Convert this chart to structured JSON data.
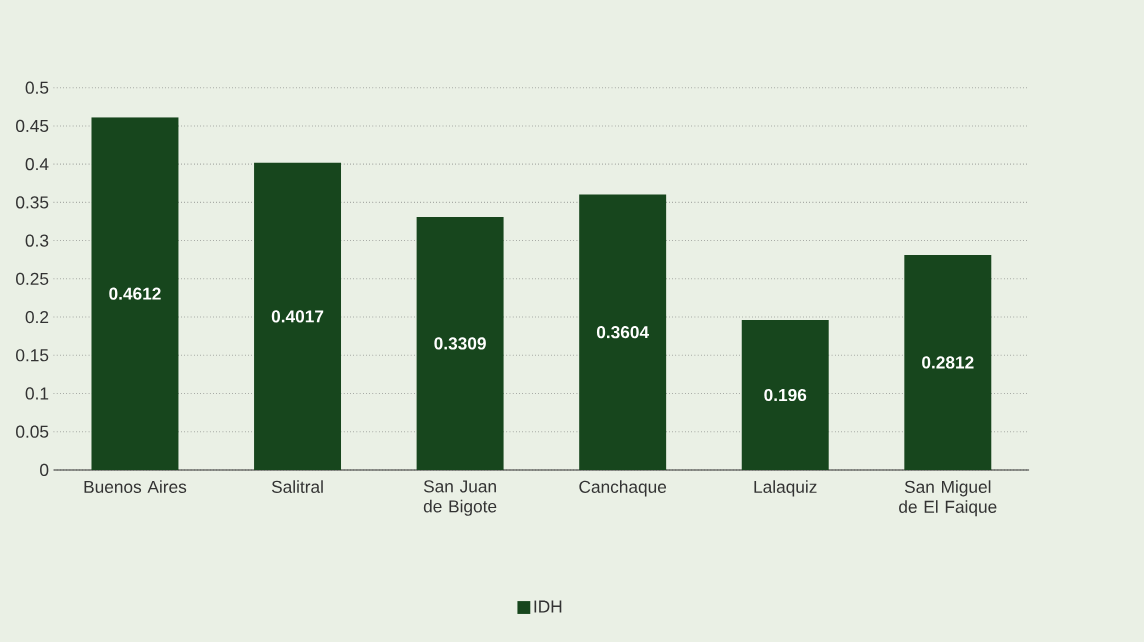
{
  "chart_data": {
    "type": "bar",
    "categories": [
      "Buenos Aires",
      "Salitral",
      "San Juan de Bigote",
      "Canchaque",
      "Lalaquiz",
      "San Miguel de El Faique"
    ],
    "series": [
      {
        "name": "IDH",
        "color": "#17461d",
        "values": [
          0.4612,
          0.4017,
          0.3309,
          0.3604,
          0.196,
          0.2812
        ]
      }
    ],
    "ylim": [
      0,
      0.5
    ],
    "yticks": [
      0,
      0.05,
      0.1,
      0.15,
      0.2,
      0.25,
      0.3,
      0.35,
      0.4,
      0.45,
      0.5
    ],
    "grid": "y",
    "legend": "bottom",
    "data_labels": true
  }
}
